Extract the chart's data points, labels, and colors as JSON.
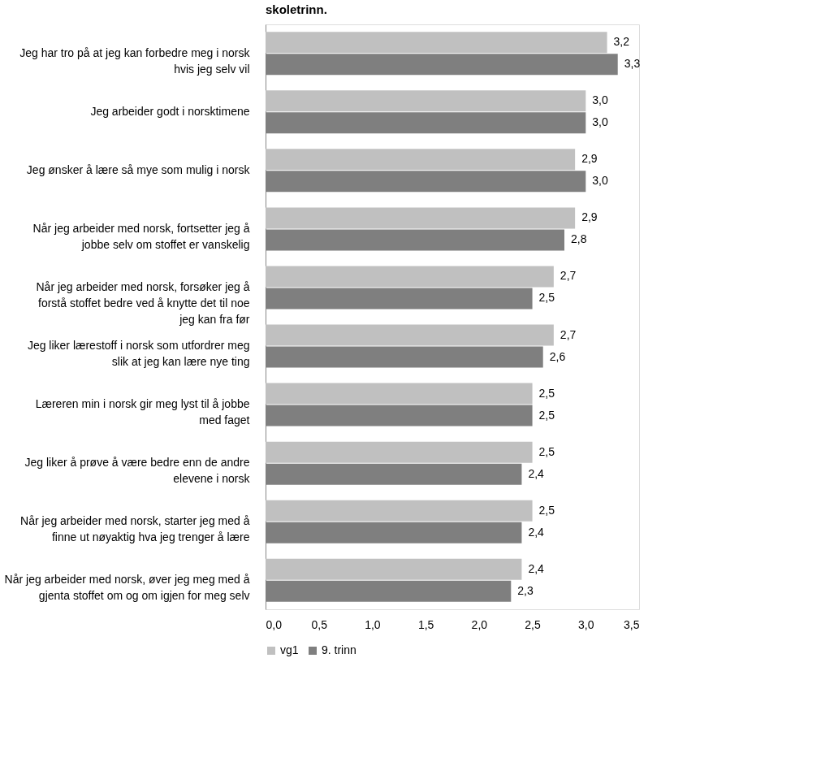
{
  "chart_data": {
    "type": "bar",
    "title": "skoletrinn.",
    "orientation": "horizontal",
    "categories": [
      "Jeg har tro på at jeg kan forbedre meg i norsk hvis jeg selv vil",
      "Jeg arbeider godt i norsktimene",
      "Jeg ønsker å lære så mye som mulig i norsk",
      "Når jeg arbeider med norsk, fortsetter jeg å jobbe selv om stoffet er vanskelig",
      "Når jeg arbeider med norsk, forsøker jeg å forstå stoffet bedre ved å knytte det til noe jeg kan fra før",
      "Jeg liker lærestoff i norsk som utfordrer meg slik at jeg kan lære nye ting",
      "Læreren min i norsk gir meg lyst til å jobbe med faget",
      "Jeg liker å prøve å være bedre enn de andre elevene i norsk",
      "Når jeg arbeider med norsk, starter jeg med å finne ut nøyaktig hva jeg trenger å lære",
      "Når jeg arbeider med norsk, øver jeg meg med å gjenta stoffet om og om igjen for meg selv"
    ],
    "series": [
      {
        "name": "vg1",
        "color": "#c0c0c0",
        "values": [
          3.2,
          3.0,
          2.9,
          2.9,
          2.7,
          2.7,
          2.5,
          2.5,
          2.5,
          2.4
        ],
        "value_labels": [
          "3,2",
          "3,0",
          "2,9",
          "2,9",
          "2,7",
          "2,7",
          "2,5",
          "2,5",
          "2,5",
          "2,4"
        ]
      },
      {
        "name": "9. trinn",
        "color": "#7f7f7f",
        "values": [
          3.3,
          3.0,
          3.0,
          2.8,
          2.5,
          2.6,
          2.5,
          2.4,
          2.4,
          2.3
        ],
        "value_labels": [
          "3,3",
          "3,0",
          "3,0",
          "2,8",
          "2,5",
          "2,6",
          "2,5",
          "2,4",
          "2,4",
          "2,3"
        ]
      }
    ],
    "xlim": [
      0,
      3.5
    ],
    "xticks": [
      {
        "value": 0,
        "label": "0,0"
      },
      {
        "value": 0.5,
        "label": "0,5"
      },
      {
        "value": 1,
        "label": "1,0"
      },
      {
        "value": 1.5,
        "label": "1,5"
      },
      {
        "value": 2,
        "label": "2,0"
      },
      {
        "value": 2.5,
        "label": "2,5"
      },
      {
        "value": 3,
        "label": "3,0"
      },
      {
        "value": 3.5,
        "label": "3,5"
      }
    ],
    "grid": false,
    "legend": "bottom"
  }
}
